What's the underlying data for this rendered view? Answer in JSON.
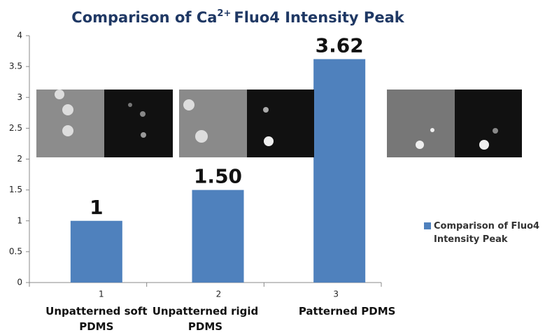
{
  "chart_data": {
    "type": "bar",
    "title_parts": [
      "Comparison of Ca",
      "2+",
      "Fluo4 Intensity Peak"
    ],
    "categories": [
      "1",
      "2",
      "3"
    ],
    "category_descriptions": [
      "Unpatterned soft PDMS",
      "Unpatterned rigid PDMS",
      "Patterned  PDMS"
    ],
    "series": [
      {
        "name": "Comparison of Fluo4 Intensity Peak",
        "color": "#4f81bd",
        "values": [
          1,
          1.5,
          3.62
        ],
        "value_labels": [
          "1",
          "1.50",
          "3.62"
        ]
      }
    ],
    "ylim": [
      0,
      4
    ],
    "yticks": [
      0,
      0.5,
      1,
      1.5,
      2,
      2.5,
      3,
      3.5,
      4
    ],
    "grid": false,
    "legend": "right"
  }
}
